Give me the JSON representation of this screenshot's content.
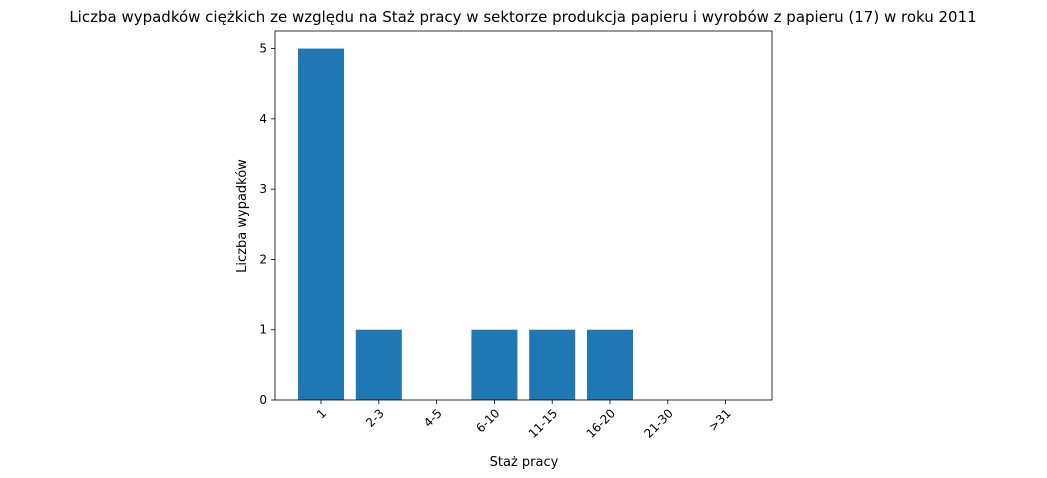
{
  "chart_data": {
    "type": "bar",
    "title": "Liczba wypadków ciężkich ze względu na Staż pracy w sektorze produkcja papieru i wyrobów z papieru  (17)   w roku 2011",
    "xlabel": "Staż pracy",
    "ylabel": "Liczba wypadków",
    "categories": [
      "1",
      "2-3",
      "4-5",
      "6-10",
      "11-15",
      "16-20",
      "21-30",
      ">31"
    ],
    "values": [
      5,
      1,
      0,
      1,
      1,
      1,
      0,
      0
    ],
    "ylim": [
      0,
      5.25
    ],
    "yticks": [
      "0",
      "1",
      "2",
      "3",
      "4",
      "5"
    ],
    "grid": false,
    "bar_color": "#1f77b4"
  }
}
